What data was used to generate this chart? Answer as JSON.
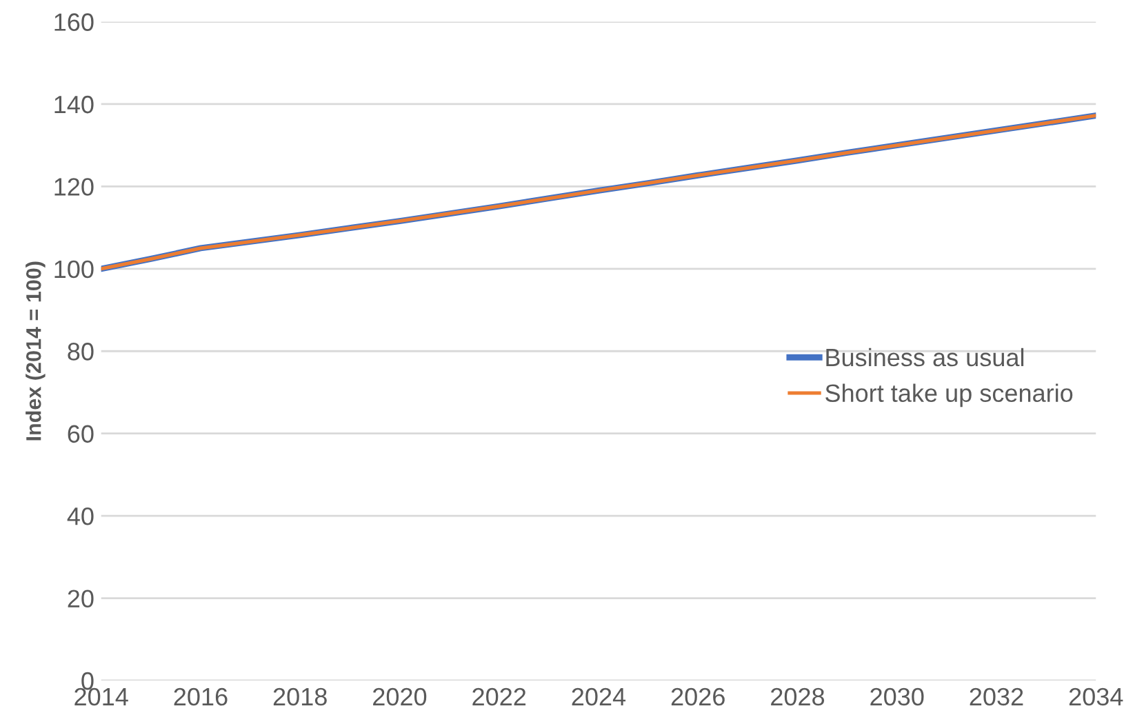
{
  "chart_data": {
    "type": "line",
    "ylabel": "Index (2014 = 100)",
    "x": [
      2014,
      2015,
      2016,
      2017,
      2018,
      2019,
      2020,
      2021,
      2022,
      2023,
      2024,
      2025,
      2026,
      2027,
      2028,
      2029,
      2030,
      2031,
      2032,
      2033,
      2034
    ],
    "series": [
      {
        "name": "Business as usual",
        "color": "#4472c4",
        "values": [
          100,
          102.4,
          105,
          106.6,
          108.2,
          109.9,
          111.6,
          113.4,
          115.2,
          117.1,
          119,
          120.8,
          122.7,
          124.5,
          126.3,
          128.2,
          130,
          131.8,
          133.6,
          135.4,
          137.2
        ]
      },
      {
        "name": "Short take up scenario",
        "color": "#ed7d31",
        "values": [
          100,
          102.4,
          105,
          106.6,
          108.2,
          109.9,
          111.6,
          113.4,
          115.2,
          117.1,
          119,
          120.8,
          122.7,
          124.5,
          126.3,
          128.2,
          130,
          131.8,
          133.6,
          135.4,
          137.2
        ]
      }
    ],
    "xlim": [
      2014,
      2034
    ],
    "xticks": [
      2014,
      2016,
      2018,
      2020,
      2022,
      2024,
      2026,
      2028,
      2030,
      2032,
      2034
    ],
    "ylim": [
      0,
      160
    ],
    "yticks": [
      0,
      20,
      40,
      60,
      80,
      100,
      120,
      140,
      160
    ],
    "grid": "y",
    "legend": "right",
    "marker": "none",
    "line_style": "solid"
  }
}
